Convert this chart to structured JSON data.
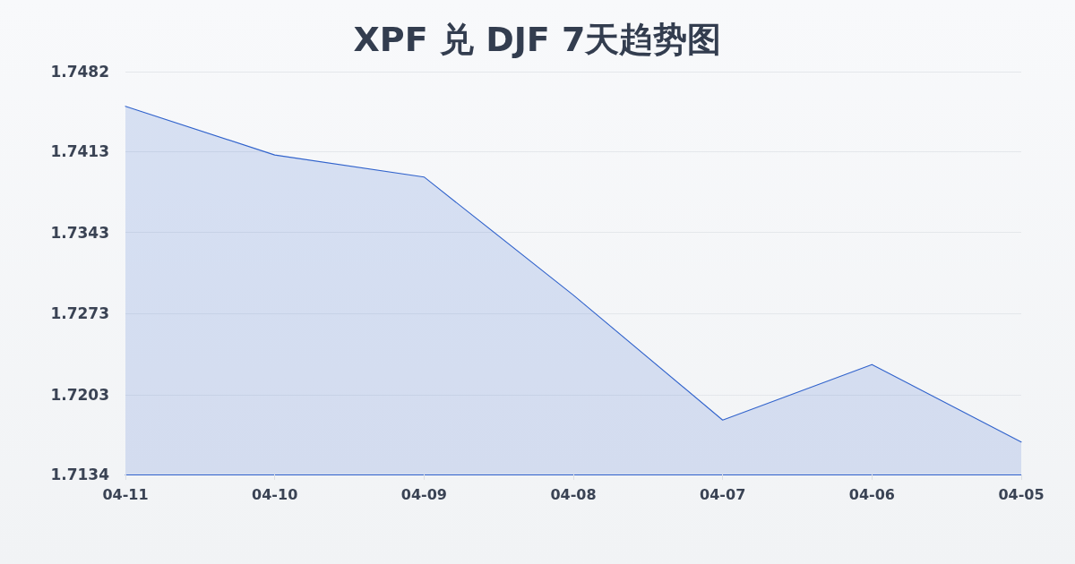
{
  "chart_data": {
    "type": "area",
    "title": "XPF 兑 DJF 7天趋势图",
    "categories": [
      "04-11",
      "04-10",
      "04-09",
      "04-08",
      "04-07",
      "04-06",
      "04-05"
    ],
    "values": [
      1.7452,
      1.741,
      1.7391,
      1.7289,
      1.7181,
      1.7229,
      1.7162
    ],
    "color": "#3163cc",
    "ylim": [
      1.7134,
      1.7482
    ],
    "yticks": [
      1.7134,
      1.7203,
      1.7273,
      1.7343,
      1.7413,
      1.7482
    ],
    "grid": "y",
    "marker": "none",
    "line_style": "solid"
  }
}
